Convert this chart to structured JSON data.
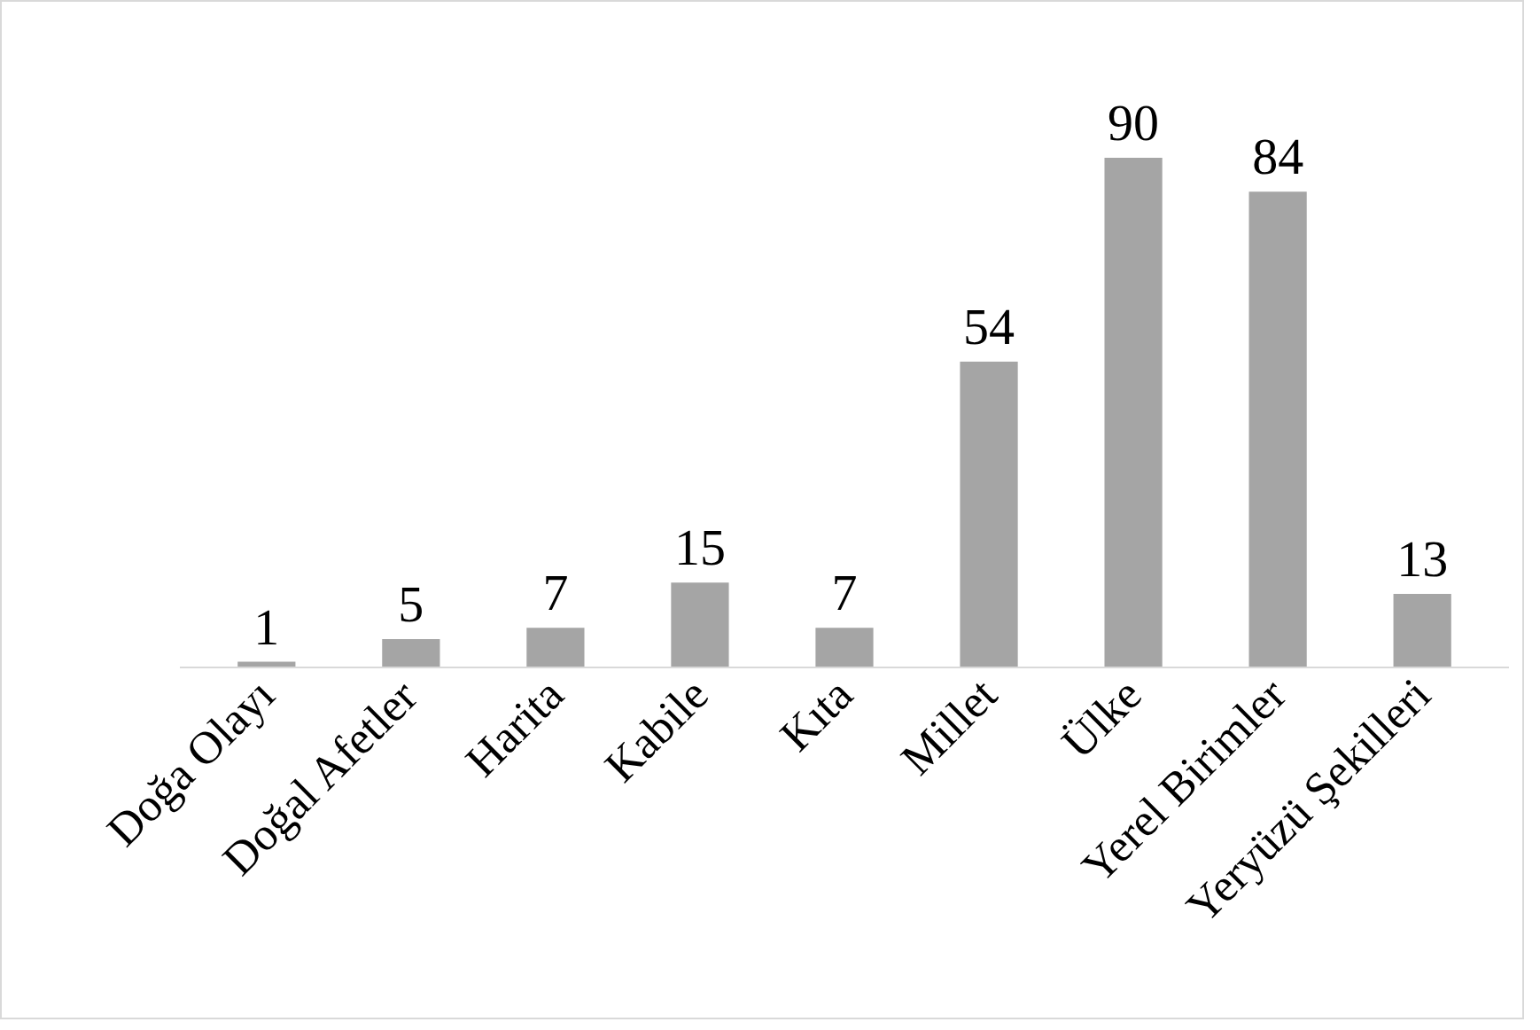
{
  "chart_data": {
    "type": "bar",
    "categories": [
      "Doğa Olayı",
      "Doğal Afetler",
      "Harita",
      "Kabile",
      "Kıta",
      "Millet",
      "Ülke",
      "Yerel Birimler",
      "Yeryüzü Şekilleri"
    ],
    "values": [
      1,
      5,
      7,
      15,
      7,
      54,
      90,
      84,
      13
    ],
    "color": "#a5a5a5",
    "data_labels": true
  }
}
